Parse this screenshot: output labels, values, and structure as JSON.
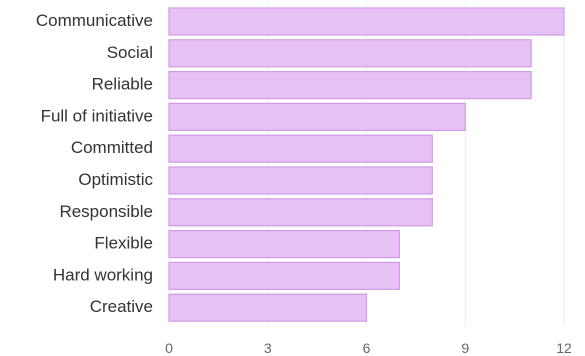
{
  "chart_data": {
    "type": "bar",
    "orientation": "horizontal",
    "categories": [
      "Communicative",
      "Social",
      "Reliable",
      "Full of initiative",
      "Committed",
      "Optimistic",
      "Responsible",
      "Flexible",
      "Hard working",
      "Creative"
    ],
    "values": [
      12,
      11,
      11,
      9,
      8,
      8,
      8,
      7,
      7,
      6
    ],
    "xlim": [
      0,
      12
    ],
    "xticks": [
      "0",
      "3",
      "6",
      "9",
      "12"
    ],
    "grid": true,
    "colors": {
      "bar_fill": "#e6c1f5",
      "bar_stroke": "#d39be3"
    }
  }
}
